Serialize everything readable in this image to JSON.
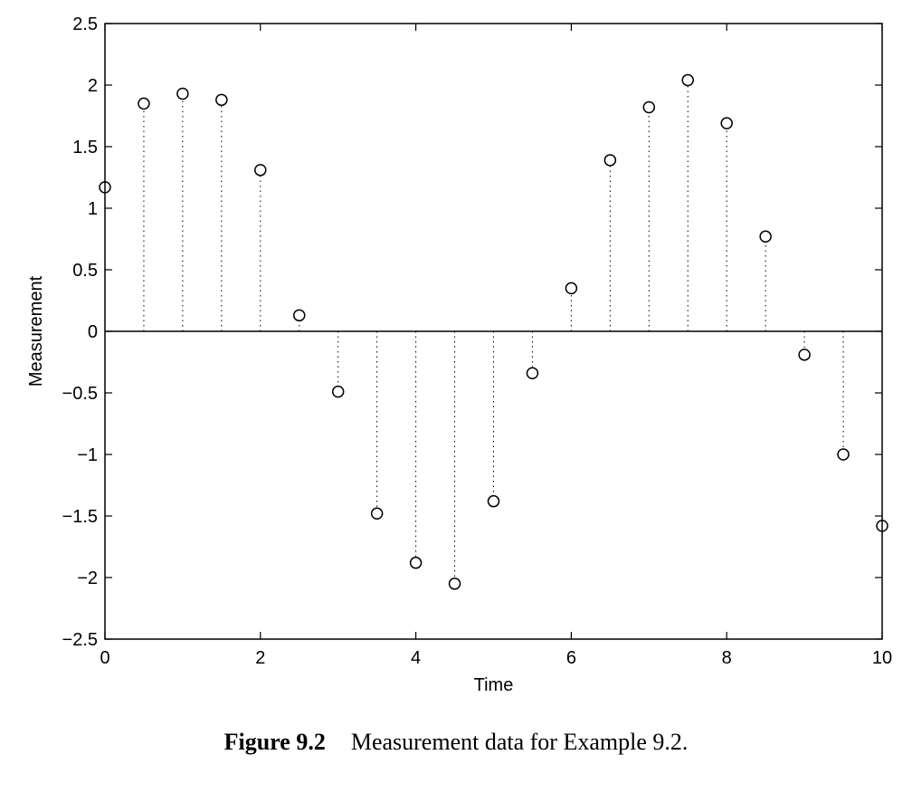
{
  "caption": {
    "label": "Figure 9.2",
    "text": "Measurement data for Example 9.2."
  },
  "chart_data": {
    "type": "stem",
    "title": "",
    "xlabel": "Time",
    "ylabel": "Measurement",
    "xlim": [
      0,
      10
    ],
    "ylim": [
      -2.5,
      2.5
    ],
    "xticks": [
      0,
      2,
      4,
      6,
      8,
      10
    ],
    "yticks": [
      -2.5,
      -2,
      -1.5,
      -1,
      -0.5,
      0,
      0.5,
      1,
      1.5,
      2,
      2.5
    ],
    "grid": false,
    "marker": "open-circle",
    "stem_style": "dotted",
    "baseline": 0,
    "x": [
      0,
      0.5,
      1,
      1.5,
      2,
      2.5,
      3,
      3.5,
      4,
      4.5,
      5,
      5.5,
      6,
      6.5,
      7,
      7.5,
      8,
      8.5,
      9,
      9.5,
      10
    ],
    "y": [
      1.17,
      1.85,
      1.93,
      1.88,
      1.31,
      0.13,
      -0.49,
      -1.48,
      -1.88,
      -2.05,
      -1.38,
      -0.34,
      0.35,
      1.39,
      1.82,
      2.04,
      1.69,
      0.77,
      -0.19,
      -1.0,
      -1.58
    ]
  }
}
